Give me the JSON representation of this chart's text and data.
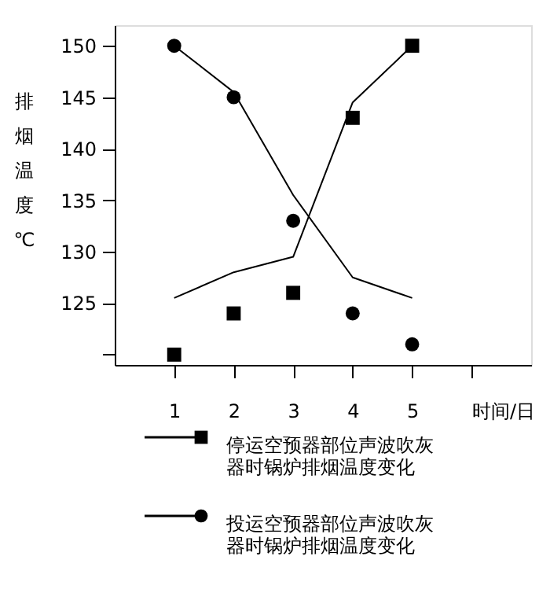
{
  "chart_data": {
    "type": "line",
    "xlabel": "时间/日",
    "ylabel": "排烟温度℃",
    "x": [
      1,
      2,
      3,
      4,
      5
    ],
    "xlim": [
      0,
      7
    ],
    "xticks": [
      1,
      2,
      3,
      4,
      5,
      {
        "value": 6,
        "label": null
      }
    ],
    "ylim": [
      119,
      152
    ],
    "yticks": [
      {
        "value": 120,
        "label": null
      },
      125,
      130,
      135,
      140,
      145,
      150
    ],
    "grid": false,
    "legend": "bottom",
    "line_style": "solid",
    "series": [
      {
        "name": "停运空预器部位声波吹灰器时锅炉排烟温度变化",
        "type": "scatter",
        "marker": "square",
        "color": "#000000",
        "values": [
          120,
          124,
          126,
          143,
          150
        ]
      },
      {
        "name": "投运空预器部位声波吹灰器时锅炉排烟温度变化",
        "type": "scatter",
        "marker": "circle",
        "color": "#000000",
        "values": [
          150,
          145,
          133,
          124,
          121
        ]
      },
      {
        "marker": "none",
        "color": "#000000",
        "values": [
          125.5,
          128,
          129.5,
          144.5,
          150
        ]
      },
      {
        "marker": "none",
        "color": "#000000",
        "values": [
          150,
          145.5,
          135.5,
          127.5,
          125.5
        ]
      }
    ]
  }
}
